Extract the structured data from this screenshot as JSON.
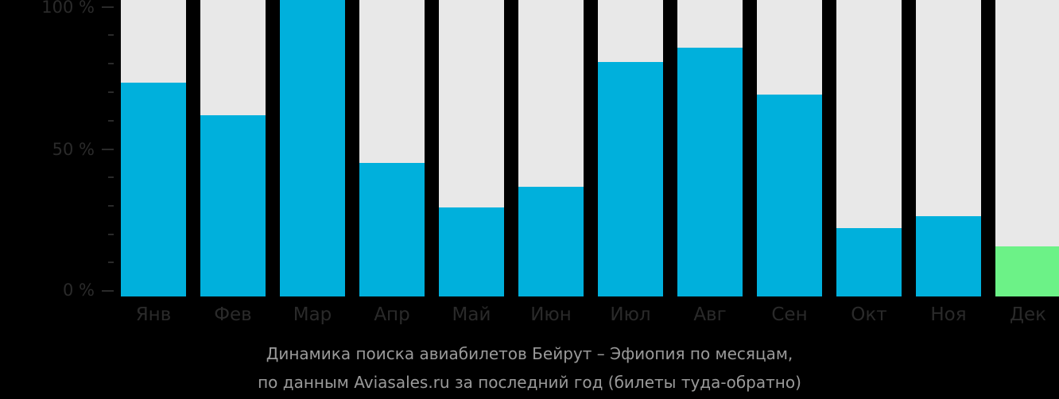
{
  "chart_data": {
    "type": "bar",
    "title": "Динамика поиска авиабилетов Бейрут – Эфиопия по месяцам, по данным Aviasales.ru за последний год (билеты туда-обратно)",
    "xlabel": "",
    "ylabel": "",
    "ylim": [
      0,
      100
    ],
    "y_ticks": [
      "0 %",
      "50 %",
      "100 %"
    ],
    "grid": false,
    "legend": null,
    "categories": [
      "Янв",
      "Фев",
      "Мар",
      "Апр",
      "Май",
      "Июн",
      "Июл",
      "Авг",
      "Сен",
      "Окт",
      "Ноя",
      "Дек"
    ],
    "series": [
      {
        "name": "Динамика поиска (%)",
        "values": [
          72,
          61,
          100,
          45,
          30,
          37,
          79,
          84,
          68,
          23,
          27,
          17
        ]
      }
    ],
    "highlighted_category": "Дек",
    "colors": {
      "bar": "#00b0dc",
      "highlight": "#6cf287",
      "track": "#e8e8e8",
      "background": "#000000"
    }
  },
  "axis": {
    "y_labels": [
      {
        "label": "100 %",
        "value": 100
      },
      {
        "label": "50 %",
        "value": 50
      },
      {
        "label": "0 %",
        "value": 0
      }
    ]
  },
  "caption": {
    "line1": "Динамика поиска авиабилетов Бейрут – Эфиопия по месяцам,",
    "line2": "по данным Aviasales.ru за последний год (билеты туда-обратно)"
  }
}
